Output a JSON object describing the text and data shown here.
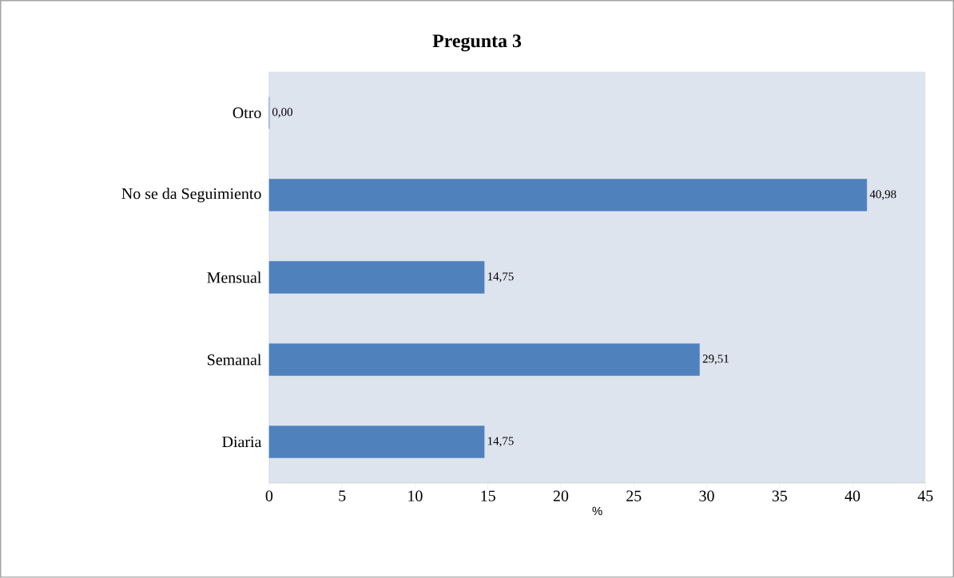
{
  "chart_data": {
    "type": "bar",
    "orientation": "horizontal",
    "title": "Pregunta 3",
    "xlabel": "%",
    "categories": [
      "Otro",
      "No se da Seguimiento",
      "Mensual",
      "Semanal",
      "Diaria"
    ],
    "values": [
      0,
      40.98,
      14.75,
      29.51,
      14.75
    ],
    "value_labels": [
      "0,00",
      "40,98",
      "14,75",
      "29,51",
      "14,75"
    ],
    "color": "#4f81bd",
    "xlim": [
      0,
      45
    ],
    "xticks": [
      0,
      5,
      10,
      15,
      20,
      25,
      30,
      35,
      40,
      45
    ]
  }
}
